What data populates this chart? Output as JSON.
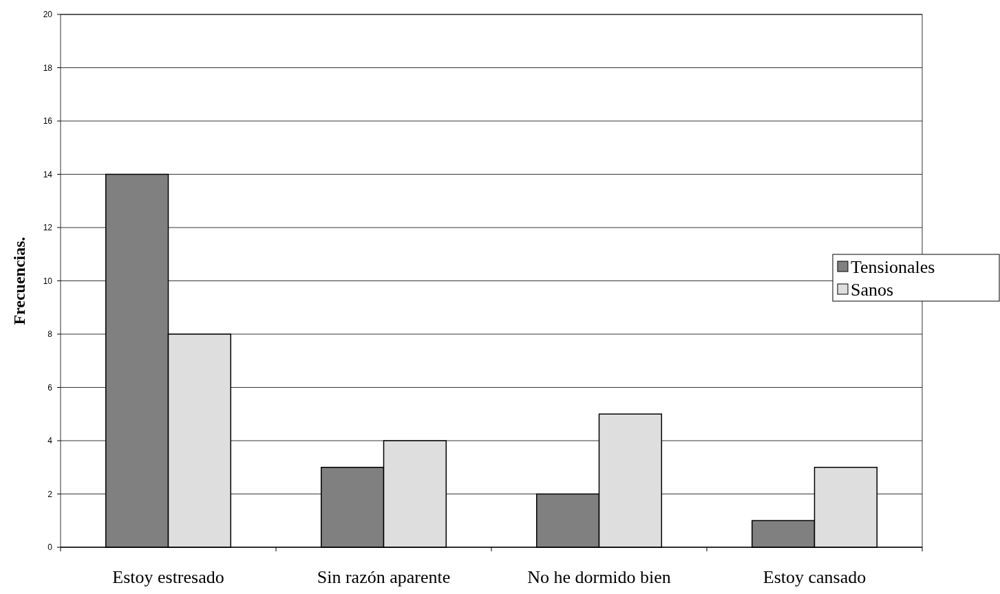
{
  "chart_data": {
    "type": "bar",
    "ylabel": "Frecuencias.",
    "categories": [
      "Estoy estresado",
      "Sin razón aparente",
      "No he dormido bien",
      "Estoy cansado"
    ],
    "series": [
      {
        "name": "Tensionales",
        "color": "#808080",
        "values": [
          14,
          3,
          2,
          1
        ]
      },
      {
        "name": "Sanos",
        "color": "#dedede",
        "values": [
          8,
          4,
          5,
          3
        ]
      }
    ],
    "ylim": [
      0,
      20
    ],
    "yticks": [
      0,
      2,
      4,
      6,
      8,
      10,
      12,
      14,
      16,
      18,
      20
    ],
    "grid": "y",
    "legend": "right"
  }
}
